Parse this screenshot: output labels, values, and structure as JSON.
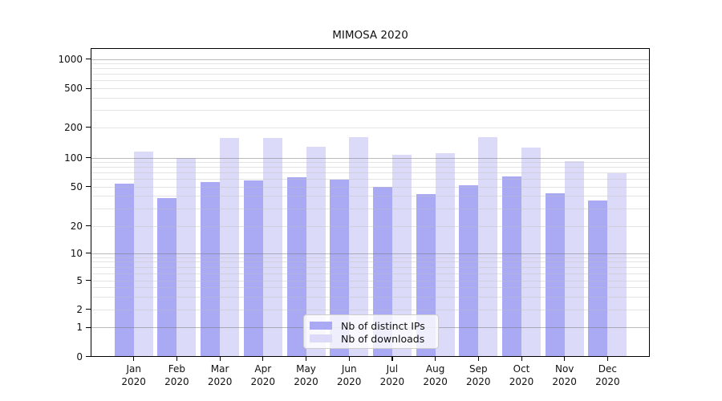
{
  "chart_data": {
    "type": "bar",
    "title": "MIMOSA 2020",
    "categories": [
      "Jan 2020",
      "Feb 2020",
      "Mar 2020",
      "Apr 2020",
      "May 2020",
      "Jun 2020",
      "Jul 2020",
      "Aug 2020",
      "Sep 2020",
      "Oct 2020",
      "Nov 2020",
      "Dec 2020"
    ],
    "series": [
      {
        "name": "Nb of distinct IPs",
        "color": "#a9a9f4",
        "values": [
          54,
          38,
          56,
          58,
          62,
          59,
          50,
          42,
          51,
          63,
          43,
          36
        ]
      },
      {
        "name": "Nb of downloads",
        "color": "#dbdbf9",
        "values": [
          114,
          100,
          157,
          155,
          129,
          159,
          107,
          110,
          160,
          126,
          92,
          69
        ]
      }
    ],
    "xlabel": "",
    "ylabel": "",
    "yscale": "symlog",
    "ylim": [
      0,
      1300
    ],
    "yticks": [
      0,
      1,
      2,
      5,
      10,
      20,
      50,
      100,
      200,
      500,
      1000
    ],
    "grid": "on",
    "grid_major_values": [
      1,
      10,
      100,
      1000
    ],
    "grid_minor_values": [
      2,
      3,
      4,
      5,
      6,
      7,
      8,
      9,
      20,
      30,
      40,
      50,
      60,
      70,
      80,
      90,
      200,
      300,
      400,
      500,
      600,
      700,
      800,
      900
    ],
    "legend_position": "lower center",
    "colors": {
      "major_grid": "#bcbcbc",
      "minor_grid": "#e6e6e6",
      "axis": "#000000",
      "text": "#111111",
      "legend_border": "#cccccc"
    }
  }
}
